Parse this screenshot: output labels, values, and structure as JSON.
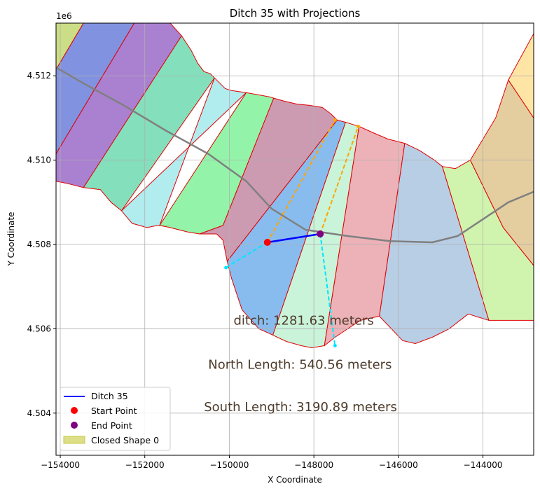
{
  "chart_data": {
    "type": "scatter",
    "title": "Ditch 35 with Projections",
    "xlabel": "X Coordinate",
    "ylabel": "Y Coordinate",
    "y_offset_label": "1e6",
    "xlim": [
      -154100,
      -142800
    ],
    "ylim": [
      4503000,
      4513250
    ],
    "x_ticks": [
      -154000,
      -152000,
      -150000,
      -148000,
      -146000,
      -144000
    ],
    "x_tick_labels": [
      "−154000",
      "−152000",
      "−150000",
      "−148000",
      "−146000",
      "−144000"
    ],
    "y_ticks": [
      4504000,
      4506000,
      4508000,
      4510000,
      4512000
    ],
    "y_tick_labels": [
      "4.504",
      "4.506",
      "4.508",
      "4.510",
      "4.512"
    ],
    "grid": true,
    "legend_position": "lower-left",
    "legend": [
      {
        "label": "Ditch 35",
        "kind": "line",
        "color": "#0000ff"
      },
      {
        "label": "Start Point",
        "kind": "marker",
        "color": "#ff0000"
      },
      {
        "label": "End Point",
        "kind": "marker",
        "color": "#800080"
      },
      {
        "label": "Closed Shape 0",
        "kind": "patch",
        "color": "#d4d66a"
      }
    ],
    "annotations": [
      {
        "text": "ditch: 1281.63 meters",
        "x": -149900,
        "y": 4506100
      },
      {
        "text": "North Length: 540.56 meters",
        "x": -150500,
        "y": 4505050
      },
      {
        "text": "South Length: 3190.89 meters",
        "x": -150600,
        "y": 4504050
      }
    ],
    "ditch": {
      "name": "Ditch 35",
      "color": "#0000ff",
      "x": [
        -149100,
        -147850
      ],
      "y": [
        4508050,
        4508250
      ]
    },
    "start_point": {
      "name": "Start Point",
      "x": -149100,
      "y": 4508050,
      "color": "#ff0000"
    },
    "end_point": {
      "name": "End Point",
      "x": -147850,
      "y": 4508250,
      "color": "#800080"
    },
    "north_projections": [
      {
        "color": "#ffa500",
        "x": [
          -149100,
          -147500
        ],
        "y": [
          4508050,
          4510950
        ]
      },
      {
        "color": "#ffa500",
        "x": [
          -147850,
          -146950
        ],
        "y": [
          4508250,
          4510800
        ]
      }
    ],
    "south_projections": [
      {
        "color": "#00e5ff",
        "x": [
          -149100,
          -150080
        ],
        "y": [
          4508050,
          4507450
        ]
      },
      {
        "color": "#00e5ff",
        "x": [
          -147850,
          -147500
        ],
        "y": [
          4508250,
          4505600
        ]
      }
    ],
    "centerline": {
      "color": "#808080",
      "x": [
        -154100,
        -153500,
        -152500,
        -151500,
        -150500,
        -149600,
        -149000,
        -148200,
        -147200,
        -146200,
        -145200,
        -144600,
        -144000,
        -143400,
        -142800
      ],
      "y": [
        4512200,
        4511850,
        4511300,
        4510700,
        4510150,
        4509500,
        4508850,
        4508350,
        4508200,
        4508080,
        4508050,
        4508200,
        4508600,
        4509000,
        4509250
      ]
    },
    "polygons": [
      {
        "color": "#c2d870",
        "x": [
          -154100,
          -153450,
          -154100
        ],
        "y": [
          4513250,
          4513250,
          4512150
        ]
      },
      {
        "color": "#6b7fda",
        "x": [
          -153450,
          -152250,
          -154100,
          -154100
        ],
        "y": [
          4513250,
          4513250,
          4510150,
          4512150
        ]
      },
      {
        "color": "#9a6bc8",
        "x": [
          -152250,
          -151400,
          -151130,
          -153450,
          -153850,
          -154100,
          -154100
        ],
        "y": [
          4513250,
          4513250,
          4512950,
          4509350,
          4509450,
          4509500,
          4510150
        ]
      },
      {
        "color": "#6fd9b0",
        "x": [
          -151130,
          -150900,
          -150750,
          -150600,
          -150450,
          -150350,
          -152550,
          -152800,
          -153050,
          -153450
        ],
        "y": [
          4512950,
          4512600,
          4512300,
          4512100,
          4512050,
          4511950,
          4508800,
          4509000,
          4509300,
          4509350
        ]
      },
      {
        "color": "#a3e9ec",
        "x": [
          -150350,
          -150100,
          -149950,
          -149600,
          -152550,
          -152300,
          -151950,
          -151700,
          -151400,
          -151650
        ],
        "y": [
          4511950,
          4511700,
          4511650,
          4511600,
          4508800,
          4508500,
          4508400,
          4508450,
          4508450,
          4508450
        ]
      },
      {
        "color": "#80f29a",
        "x": [
          -149600,
          -149050,
          -148950,
          -150150,
          -150700,
          -151000,
          -151400,
          -151650
        ],
        "y": [
          4511600,
          4511500,
          4511470,
          4508450,
          4508250,
          4508300,
          4508400,
          4508450
        ]
      },
      {
        "color": "#c38aa4",
        "x": [
          -148950,
          -148700,
          -148400,
          -148100,
          -147800,
          -147600,
          -147450,
          -150050,
          -150150,
          -150300,
          -150700,
          -150150
        ],
        "y": [
          4511470,
          4511400,
          4511330,
          4511300,
          4511250,
          4511100,
          4510950,
          4507600,
          4508100,
          4508250,
          4508250,
          4508450
        ]
      },
      {
        "color": "#73b0ec",
        "x": [
          -147450,
          -147250,
          -148970,
          -149300,
          -149700,
          -149850,
          -149950,
          -150050
        ],
        "y": [
          4510950,
          4510900,
          4505850,
          4506000,
          4506450,
          4506900,
          4507200,
          4507600
        ]
      },
      {
        "color": "#bff2d4",
        "x": [
          -147250,
          -146930,
          -147750,
          -148050,
          -148300,
          -148650,
          -148970
        ],
        "y": [
          4510900,
          4510800,
          4505600,
          4505550,
          4505600,
          4505700,
          4505850
        ]
      },
      {
        "color": "#e9a4ab",
        "x": [
          -146930,
          -146600,
          -146250,
          -145850,
          -146450,
          -146900,
          -147500,
          -147750
        ],
        "y": [
          4510800,
          4510650,
          4510500,
          4510400,
          4506300,
          4506200,
          4505800,
          4505600
        ]
      },
      {
        "color": "#aac6e1",
        "x": [
          -145850,
          -145500,
          -145150,
          -144960,
          -143860,
          -144350,
          -144800,
          -145200,
          -145600,
          -145900,
          -146450
        ],
        "y": [
          4510400,
          4510230,
          4510000,
          4509850,
          4506200,
          4506350,
          4506000,
          4505800,
          4505650,
          4505720,
          4506300
        ]
      },
      {
        "color": "#c8f2a0",
        "x": [
          -144960,
          -144650,
          -144300,
          -143520,
          -142800,
          -142800,
          -143860
        ],
        "y": [
          4509850,
          4509800,
          4510000,
          4508400,
          4507500,
          4506200,
          4506200
        ]
      },
      {
        "color": "#dfc48e",
        "x": [
          -144300,
          -143700,
          -143400,
          -142800,
          -142800,
          -143520
        ],
        "y": [
          4510000,
          4511000,
          4511900,
          4511000,
          4507500,
          4508400
        ]
      },
      {
        "color": "#ffe095",
        "x": [
          -143400,
          -142800,
          -142800
        ],
        "y": [
          4511900,
          4513000,
          4511000
        ]
      }
    ]
  }
}
